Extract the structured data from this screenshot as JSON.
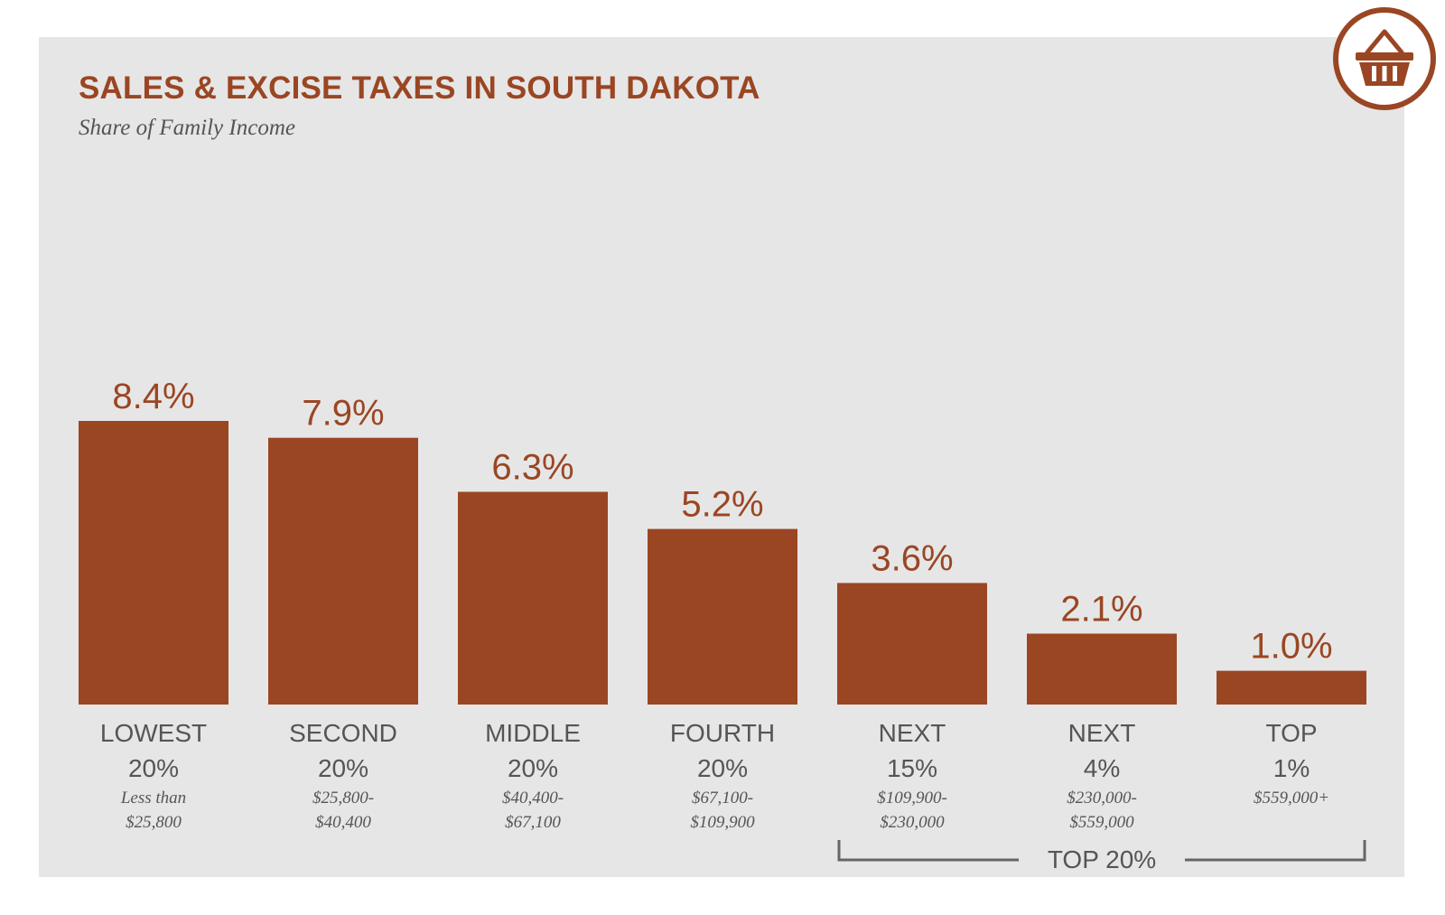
{
  "header": {
    "title": "SALES & EXCISE TAXES IN SOUTH DAKOTA",
    "subtitle": "Share of Family Income"
  },
  "logo": {
    "icon": "shopping-basket-icon"
  },
  "colors": {
    "accent": "#9a4623",
    "panel": "#e6e6e6",
    "axis_text": "#555555",
    "bracket": "#666666"
  },
  "chart_data": {
    "type": "bar",
    "title": "SALES & EXCISE TAXES IN SOUTH DAKOTA",
    "subtitle": "Share of Family Income",
    "categories": [
      {
        "line1": "LOWEST",
        "line2": "20%",
        "range1": "Less than",
        "range2": "$25,800"
      },
      {
        "line1": "SECOND",
        "line2": "20%",
        "range1": "$25,800-",
        "range2": "$40,400"
      },
      {
        "line1": "MIDDLE",
        "line2": "20%",
        "range1": "$40,400-",
        "range2": "$67,100"
      },
      {
        "line1": "FOURTH",
        "line2": "20%",
        "range1": "$67,100-",
        "range2": "$109,900"
      },
      {
        "line1": "NEXT",
        "line2": "15%",
        "range1": "$109,900-",
        "range2": "$230,000"
      },
      {
        "line1": "NEXT",
        "line2": "4%",
        "range1": "$230,000-",
        "range2": "$559,000"
      },
      {
        "line1": "TOP",
        "line2": "1%",
        "range1": "$559,000+",
        "range2": ""
      }
    ],
    "values": [
      8.4,
      7.9,
      6.3,
      5.2,
      3.6,
      2.1,
      1.0
    ],
    "value_labels": [
      "8.4%",
      "7.9%",
      "6.3%",
      "5.2%",
      "3.6%",
      "2.1%",
      "1.0%"
    ],
    "ylim": [
      0,
      8.4
    ],
    "grid": false,
    "group_bracket": {
      "label": "TOP 20%",
      "first_category_index": 4,
      "last_category_index": 6
    }
  }
}
